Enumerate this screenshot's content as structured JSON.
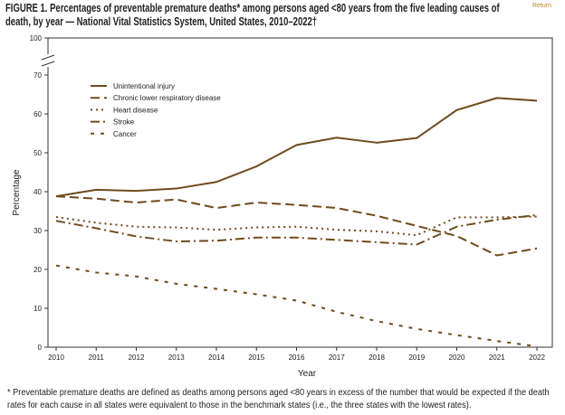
{
  "chart_data": {
    "type": "line",
    "title": "FIGURE 1. Percentages of preventable premature deaths* among persons aged <80 years from the five leading causes of death, by year — National Vital Statistics System, United States, 2010–2022†",
    "xlabel": "Year",
    "ylabel": "Percentage",
    "x": [
      2010,
      2011,
      2012,
      2013,
      2014,
      2015,
      2016,
      2017,
      2018,
      2019,
      2020,
      2021,
      2022
    ],
    "yticks": [
      0,
      10,
      20,
      30,
      40,
      50,
      60,
      70,
      100
    ],
    "ylim": [
      0,
      100
    ],
    "axis_break": [
      70,
      100
    ],
    "grid": false,
    "legend_placement": "top-left",
    "series": [
      {
        "name": "Unintentional injury",
        "style": "solid",
        "values": [
          38.8,
          40.5,
          40.2,
          40.8,
          42.5,
          46.5,
          52.0,
          53.9,
          52.6,
          53.8,
          61.0,
          64.1,
          63.4
        ]
      },
      {
        "name": "Chronic lower respiratory disease",
        "style": "long-dash",
        "values": [
          38.8,
          38.2,
          37.2,
          38.0,
          35.8,
          37.2,
          36.6,
          35.8,
          33.8,
          31.2,
          28.6,
          23.6,
          25.4
        ]
      },
      {
        "name": "Heart disease",
        "style": "dotted",
        "values": [
          33.5,
          32.0,
          31.0,
          30.8,
          30.2,
          30.8,
          31.0,
          30.2,
          29.8,
          28.8,
          33.4,
          33.4,
          33.6
        ]
      },
      {
        "name": "Stroke",
        "style": "dash-dot",
        "values": [
          32.5,
          30.6,
          28.5,
          27.2,
          27.4,
          28.2,
          28.2,
          27.6,
          27.0,
          26.4,
          31.0,
          32.8,
          34.0
        ]
      },
      {
        "name": "Cancer",
        "style": "short-dash",
        "values": [
          21.0,
          19.2,
          18.2,
          16.3,
          15.0,
          13.6,
          12.0,
          9.1,
          6.7,
          4.7,
          3.1,
          1.6,
          0.2
        ]
      }
    ],
    "line_color": "#6e4b1f"
  },
  "footnote": "* Preventable premature deaths are defined as deaths among persons aged <80 years in excess of the number that would be expected if the death rates for each cause in all states were equivalent to those in the benchmark states (i.e., the three states with the lowest rates).",
  "return_link": "Return"
}
